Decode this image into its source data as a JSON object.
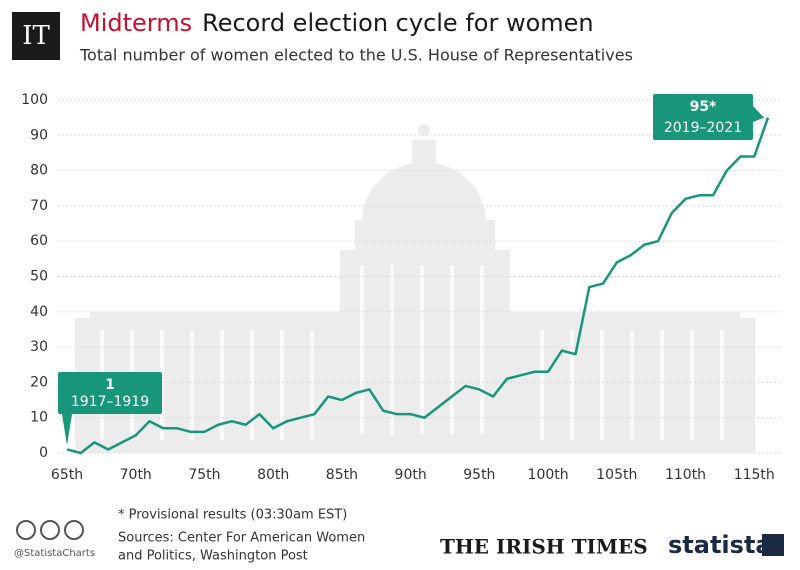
{
  "chart_data": {
    "type": "line",
    "logo": "IT",
    "title_prefix": "Midterms",
    "title": "Record election cycle for women",
    "subtitle": "Total number of women elected to the U.S. House of Representatives",
    "categories": [
      "65th",
      null,
      null,
      null,
      null,
      "70th",
      null,
      null,
      null,
      null,
      "75th",
      null,
      null,
      null,
      null,
      "80th",
      null,
      null,
      null,
      null,
      "85th",
      null,
      null,
      null,
      null,
      "90th",
      null,
      null,
      null,
      null,
      "95th",
      null,
      null,
      null,
      null,
      "100th",
      null,
      null,
      null,
      null,
      "105th",
      null,
      null,
      null,
      null,
      "110th",
      null,
      null,
      null,
      null,
      "115th",
      null
    ],
    "series": [
      {
        "name": "Women elected",
        "color": "#17967a",
        "values": [
          1,
          0,
          3,
          1,
          3,
          5,
          9,
          7,
          7,
          6,
          6,
          8,
          9,
          8,
          11,
          7,
          9,
          10,
          11,
          16,
          15,
          17,
          18,
          12,
          11,
          11,
          10,
          13,
          16,
          19,
          18,
          16,
          21,
          22,
          23,
          23,
          29,
          28,
          47,
          48,
          54,
          56,
          59,
          60,
          68,
          72,
          73,
          73,
          80,
          84,
          84,
          95
        ]
      }
    ],
    "ylim": [
      0,
      100
    ],
    "yticks": [
      0,
      10,
      20,
      30,
      40,
      50,
      60,
      70,
      80,
      90,
      100
    ],
    "grid": true,
    "annotations": [
      {
        "label": "1",
        "text": "1917–1919"
      },
      {
        "label": "95*",
        "text": "2019–2021"
      }
    ],
    "footnote": "* Provisional results (03:30am EST)",
    "sources": [
      "Sources: Center For American Women",
      "and Politics, Washington Post"
    ],
    "handle": "@StatistaCharts",
    "publisher": "THE IRISH TIMES",
    "brand": "statista"
  }
}
